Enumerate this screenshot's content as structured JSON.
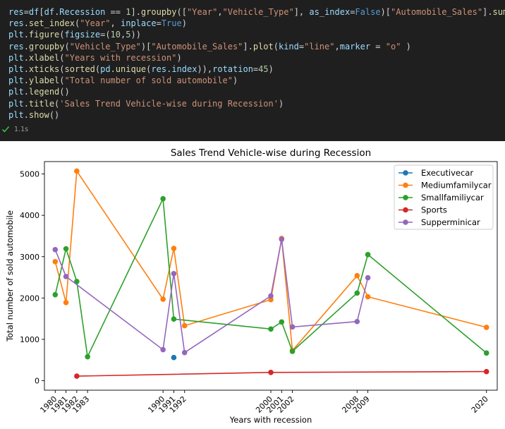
{
  "code": {
    "lines": [
      [
        [
          "var",
          "res"
        ],
        [
          "op",
          "="
        ],
        [
          "var",
          "df"
        ],
        [
          "op",
          "["
        ],
        [
          "var",
          "df"
        ],
        [
          "op",
          "."
        ],
        [
          "var",
          "Recession"
        ],
        [
          "op",
          " == "
        ],
        [
          "num",
          "1"
        ],
        [
          "op",
          "]."
        ],
        [
          "fn",
          "groupby"
        ],
        [
          "op",
          "(["
        ],
        [
          "str",
          "\"Year\""
        ],
        [
          "op",
          ","
        ],
        [
          "str",
          "\"Vehicle_Type\""
        ],
        [
          "op",
          "], "
        ],
        [
          "var",
          "as_index"
        ],
        [
          "op",
          "="
        ],
        [
          "kw",
          "False"
        ],
        [
          "op",
          ")["
        ],
        [
          "str",
          "\"Automobile_Sales\""
        ],
        [
          "op",
          "]."
        ],
        [
          "fn",
          "sum"
        ],
        [
          "op",
          "()"
        ]
      ],
      [
        [
          "var",
          "res"
        ],
        [
          "op",
          "."
        ],
        [
          "fn",
          "set_index"
        ],
        [
          "op",
          "("
        ],
        [
          "str",
          "\"Year\""
        ],
        [
          "op",
          ", "
        ],
        [
          "var",
          "inplace"
        ],
        [
          "op",
          "="
        ],
        [
          "kw",
          "True"
        ],
        [
          "op",
          ")"
        ]
      ],
      [
        [
          "var",
          "plt"
        ],
        [
          "op",
          "."
        ],
        [
          "fn",
          "figure"
        ],
        [
          "op",
          "("
        ],
        [
          "var",
          "figsize"
        ],
        [
          "op",
          "=("
        ],
        [
          "num",
          "10"
        ],
        [
          "op",
          ","
        ],
        [
          "num",
          "5"
        ],
        [
          "op",
          "))"
        ]
      ],
      [
        [
          "var",
          "res"
        ],
        [
          "op",
          "."
        ],
        [
          "fn",
          "groupby"
        ],
        [
          "op",
          "("
        ],
        [
          "str",
          "\"Vehicle_Type\""
        ],
        [
          "op",
          ")["
        ],
        [
          "str",
          "\"Automobile_Sales\""
        ],
        [
          "op",
          "]."
        ],
        [
          "fn",
          "plot"
        ],
        [
          "op",
          "("
        ],
        [
          "var",
          "kind"
        ],
        [
          "op",
          "="
        ],
        [
          "str",
          "\"line\""
        ],
        [
          "op",
          ","
        ],
        [
          "var",
          "marker"
        ],
        [
          "op",
          " = "
        ],
        [
          "str",
          "\"o\""
        ],
        [
          "op",
          " )"
        ]
      ],
      [
        [
          "var",
          "plt"
        ],
        [
          "op",
          "."
        ],
        [
          "fn",
          "xlabel"
        ],
        [
          "op",
          "("
        ],
        [
          "str",
          "\"Years with recession\""
        ],
        [
          "op",
          ")"
        ]
      ],
      [
        [
          "var",
          "plt"
        ],
        [
          "op",
          "."
        ],
        [
          "fn",
          "xticks"
        ],
        [
          "op",
          "("
        ],
        [
          "fn",
          "sorted"
        ],
        [
          "op",
          "("
        ],
        [
          "var",
          "pd"
        ],
        [
          "op",
          "."
        ],
        [
          "fn",
          "unique"
        ],
        [
          "op",
          "("
        ],
        [
          "var",
          "res"
        ],
        [
          "op",
          "."
        ],
        [
          "var",
          "index"
        ],
        [
          "op",
          ")),"
        ],
        [
          "var",
          "rotation"
        ],
        [
          "op",
          "="
        ],
        [
          "num",
          "45"
        ],
        [
          "op",
          ")"
        ]
      ],
      [
        [
          "var",
          "plt"
        ],
        [
          "op",
          "."
        ],
        [
          "fn",
          "ylabel"
        ],
        [
          "op",
          "("
        ],
        [
          "str",
          "\"Total number of sold automobile\""
        ],
        [
          "op",
          ")"
        ]
      ],
      [
        [
          "var",
          "plt"
        ],
        [
          "op",
          "."
        ],
        [
          "fn",
          "legend"
        ],
        [
          "op",
          "()"
        ]
      ],
      [
        [
          "var",
          "plt"
        ],
        [
          "op",
          "."
        ],
        [
          "fn",
          "title"
        ],
        [
          "op",
          "("
        ],
        [
          "str",
          "'Sales Trend Vehicle-wise during Recession'"
        ],
        [
          "op",
          ")"
        ]
      ],
      [
        [
          "var",
          "plt"
        ],
        [
          "op",
          "."
        ],
        [
          "fn",
          "show"
        ],
        [
          "op",
          "()"
        ]
      ]
    ]
  },
  "status": {
    "exec_time": "1.1s",
    "check_color": "#3fb950"
  },
  "chart_data": {
    "type": "line",
    "title": "Sales Trend Vehicle-wise during Recession",
    "xlabel": "Years with recession",
    "ylabel": "Total number of sold automobile",
    "xticks": [
      1980,
      1981,
      1982,
      1983,
      1990,
      1991,
      1992,
      2000,
      2001,
      2002,
      2008,
      2009,
      2020
    ],
    "xlim": [
      1979,
      2021
    ],
    "yticks": [
      0,
      1000,
      2000,
      3000,
      4000,
      5000
    ],
    "ylim": [
      -230,
      5300
    ],
    "legend_position": "top-right",
    "grid": false,
    "series": [
      {
        "name": "Executivecar",
        "color": "#1f77b4",
        "points": [
          [
            1991,
            560
          ]
        ]
      },
      {
        "name": "Mediumfamilycar",
        "color": "#ff7f0e",
        "points": [
          [
            1980,
            2880
          ],
          [
            1981,
            1890
          ],
          [
            1982,
            5070
          ],
          [
            1990,
            1970
          ],
          [
            1991,
            3200
          ],
          [
            1992,
            1330
          ],
          [
            2000,
            1960
          ],
          [
            2001,
            3440
          ],
          [
            2002,
            730
          ],
          [
            2008,
            2540
          ],
          [
            2009,
            2030
          ],
          [
            2020,
            1290
          ]
        ]
      },
      {
        "name": "Smallfamiliycar",
        "color": "#2ca02c",
        "points": [
          [
            1980,
            2080
          ],
          [
            1981,
            3190
          ],
          [
            1982,
            2400
          ],
          [
            1983,
            580
          ],
          [
            1990,
            4400
          ],
          [
            1991,
            1490
          ],
          [
            2000,
            1250
          ],
          [
            2001,
            1420
          ],
          [
            2002,
            710
          ],
          [
            2008,
            2120
          ],
          [
            2009,
            3050
          ],
          [
            2020,
            670
          ]
        ]
      },
      {
        "name": "Sports",
        "color": "#d62728",
        "points": [
          [
            1982,
            110
          ],
          [
            2000,
            200
          ],
          [
            2020,
            220
          ]
        ]
      },
      {
        "name": "Supperminicar",
        "color": "#9467bd",
        "points": [
          [
            1980,
            3170
          ],
          [
            1981,
            2520
          ],
          [
            1990,
            750
          ],
          [
            1991,
            2590
          ],
          [
            1992,
            680
          ],
          [
            2000,
            2050
          ],
          [
            2001,
            3420
          ],
          [
            2002,
            1300
          ],
          [
            2008,
            1430
          ],
          [
            2009,
            2490
          ]
        ]
      }
    ]
  }
}
